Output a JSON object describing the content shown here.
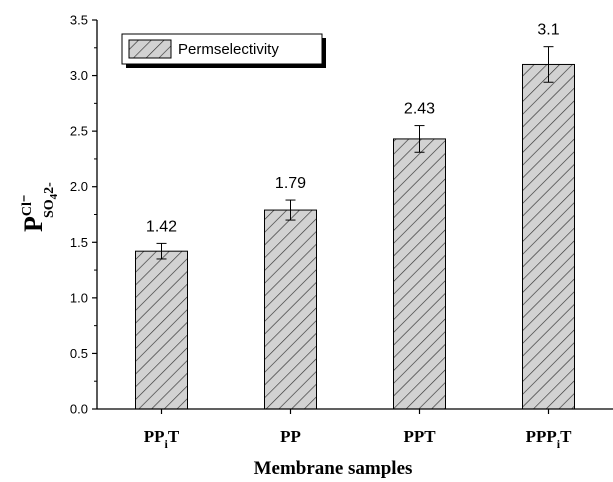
{
  "chart_data": {
    "type": "bar",
    "categories": [
      {
        "base": "PP",
        "sub": "i",
        "tail": "T"
      },
      {
        "base": "PP",
        "sub": "",
        "tail": ""
      },
      {
        "base": "PPT",
        "sub": "",
        "tail": ""
      },
      {
        "base": "PPP",
        "sub": "i",
        "tail": "T"
      }
    ],
    "series": [
      {
        "name": "Permselectivity",
        "values": [
          1.42,
          1.79,
          2.43,
          3.1
        ],
        "errors": [
          0.07,
          0.09,
          0.12,
          0.16
        ]
      }
    ],
    "data_labels": [
      "1.42",
      "1.79",
      "2.43",
      "3.1"
    ],
    "xlabel": "Membrane samples",
    "ylabel": {
      "main": "P",
      "sup": "Cl⁻",
      "sub": "SO",
      "sub_sub": "4",
      "sub_tail": "2-"
    },
    "ylim": [
      0,
      3.5
    ],
    "yticks": [
      "0.0",
      "0.5",
      "1.0",
      "1.5",
      "2.0",
      "2.5",
      "3.0",
      "3.5"
    ],
    "grid": false,
    "legend_position": "top-left",
    "bar_fill": "#d2d2d2",
    "hatch_color": "#333333"
  }
}
